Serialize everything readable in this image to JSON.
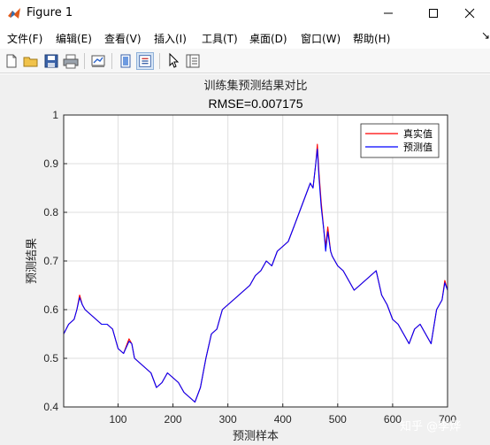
{
  "window": {
    "title": "Figure 1",
    "minimize_icon": "minimize-icon",
    "maximize_icon": "maximize-icon",
    "close_icon": "close-icon"
  },
  "menu": [
    "文件(F)",
    "编辑(E)",
    "查看(V)",
    "插入(I)",
    "工具(T)",
    "桌面(D)",
    "窗口(W)",
    "帮助(H)"
  ],
  "toolbar": {
    "icons": [
      "new-figure-icon",
      "open-file-icon",
      "save-icon",
      "print-icon",
      "link-plot-icon",
      "hide-plot-tools-icon",
      "show-plot-tools-icon",
      "edit-plot-arrow-icon",
      "property-inspector-icon"
    ]
  },
  "watermark": "知乎 @李烨",
  "colors": {
    "true_series": "#ff0000",
    "pred_series": "#0000ff",
    "figure_bg": "#f0f0f0",
    "axes_bg": "#ffffff",
    "grid": "#dfdfdf"
  },
  "chart_data": {
    "type": "line",
    "title": "训练集预测结果对比",
    "subtitle": "RMSE=0.007175",
    "xlabel": "预测样本",
    "ylabel": "预测结果",
    "xlim": [
      1,
      700
    ],
    "ylim": [
      0.4,
      1.0
    ],
    "xticks": [
      100,
      200,
      300,
      400,
      500,
      600,
      700
    ],
    "yticks": [
      0.4,
      0.5,
      0.6,
      0.7,
      0.8,
      0.9,
      1.0
    ],
    "xtick_labels": [
      "100",
      "200",
      "300",
      "400",
      "500",
      "600",
      "700"
    ],
    "ytick_labels": [
      "0.4",
      "0.5",
      "0.6",
      "0.7",
      "0.8",
      "0.9",
      "1"
    ],
    "grid": true,
    "legend_position": "top-right",
    "series": [
      {
        "name": "真实值",
        "color": "#ff0000",
        "x": [
          1,
          10,
          20,
          25,
          30,
          35,
          40,
          50,
          60,
          70,
          80,
          90,
          100,
          110,
          120,
          125,
          130,
          140,
          150,
          160,
          170,
          180,
          190,
          200,
          210,
          220,
          230,
          240,
          250,
          260,
          270,
          280,
          290,
          300,
          310,
          320,
          330,
          340,
          350,
          360,
          370,
          380,
          390,
          400,
          410,
          420,
          430,
          440,
          450,
          455,
          460,
          463,
          466,
          470,
          475,
          478,
          482,
          487,
          490,
          500,
          510,
          520,
          530,
          540,
          550,
          560,
          570,
          580,
          590,
          600,
          610,
          620,
          630,
          640,
          650,
          660,
          670,
          680,
          690,
          695,
          700
        ],
        "y": [
          0.55,
          0.57,
          0.58,
          0.6,
          0.63,
          0.61,
          0.6,
          0.59,
          0.58,
          0.57,
          0.57,
          0.56,
          0.52,
          0.51,
          0.54,
          0.53,
          0.5,
          0.49,
          0.48,
          0.47,
          0.44,
          0.45,
          0.47,
          0.46,
          0.45,
          0.43,
          0.42,
          0.41,
          0.44,
          0.5,
          0.55,
          0.56,
          0.6,
          0.61,
          0.62,
          0.63,
          0.64,
          0.65,
          0.67,
          0.68,
          0.7,
          0.69,
          0.72,
          0.73,
          0.74,
          0.77,
          0.8,
          0.83,
          0.86,
          0.85,
          0.9,
          0.94,
          0.88,
          0.82,
          0.76,
          0.73,
          0.77,
          0.72,
          0.71,
          0.69,
          0.68,
          0.66,
          0.64,
          0.65,
          0.66,
          0.67,
          0.68,
          0.63,
          0.61,
          0.58,
          0.57,
          0.55,
          0.53,
          0.56,
          0.57,
          0.55,
          0.53,
          0.6,
          0.62,
          0.66,
          0.64
        ]
      },
      {
        "name": "预测值",
        "color": "#0000ff",
        "x": [
          1,
          10,
          20,
          25,
          30,
          35,
          40,
          50,
          60,
          70,
          80,
          90,
          100,
          110,
          120,
          125,
          130,
          140,
          150,
          160,
          170,
          180,
          190,
          200,
          210,
          220,
          230,
          240,
          250,
          260,
          270,
          280,
          290,
          300,
          310,
          320,
          330,
          340,
          350,
          360,
          370,
          380,
          390,
          400,
          410,
          420,
          430,
          440,
          450,
          455,
          460,
          463,
          466,
          470,
          475,
          478,
          482,
          487,
          490,
          500,
          510,
          520,
          530,
          540,
          550,
          560,
          570,
          580,
          590,
          600,
          610,
          620,
          630,
          640,
          650,
          660,
          670,
          680,
          690,
          695,
          700
        ],
        "y": [
          0.55,
          0.57,
          0.58,
          0.6,
          0.625,
          0.61,
          0.6,
          0.59,
          0.58,
          0.57,
          0.57,
          0.56,
          0.52,
          0.51,
          0.535,
          0.53,
          0.5,
          0.49,
          0.48,
          0.47,
          0.44,
          0.45,
          0.47,
          0.46,
          0.45,
          0.43,
          0.42,
          0.41,
          0.44,
          0.5,
          0.55,
          0.56,
          0.6,
          0.61,
          0.62,
          0.63,
          0.64,
          0.65,
          0.67,
          0.68,
          0.7,
          0.69,
          0.72,
          0.73,
          0.74,
          0.77,
          0.8,
          0.83,
          0.86,
          0.85,
          0.9,
          0.93,
          0.87,
          0.81,
          0.76,
          0.72,
          0.76,
          0.72,
          0.71,
          0.69,
          0.68,
          0.66,
          0.64,
          0.65,
          0.66,
          0.67,
          0.68,
          0.63,
          0.61,
          0.58,
          0.57,
          0.55,
          0.53,
          0.56,
          0.57,
          0.55,
          0.53,
          0.6,
          0.62,
          0.655,
          0.64
        ]
      }
    ]
  }
}
